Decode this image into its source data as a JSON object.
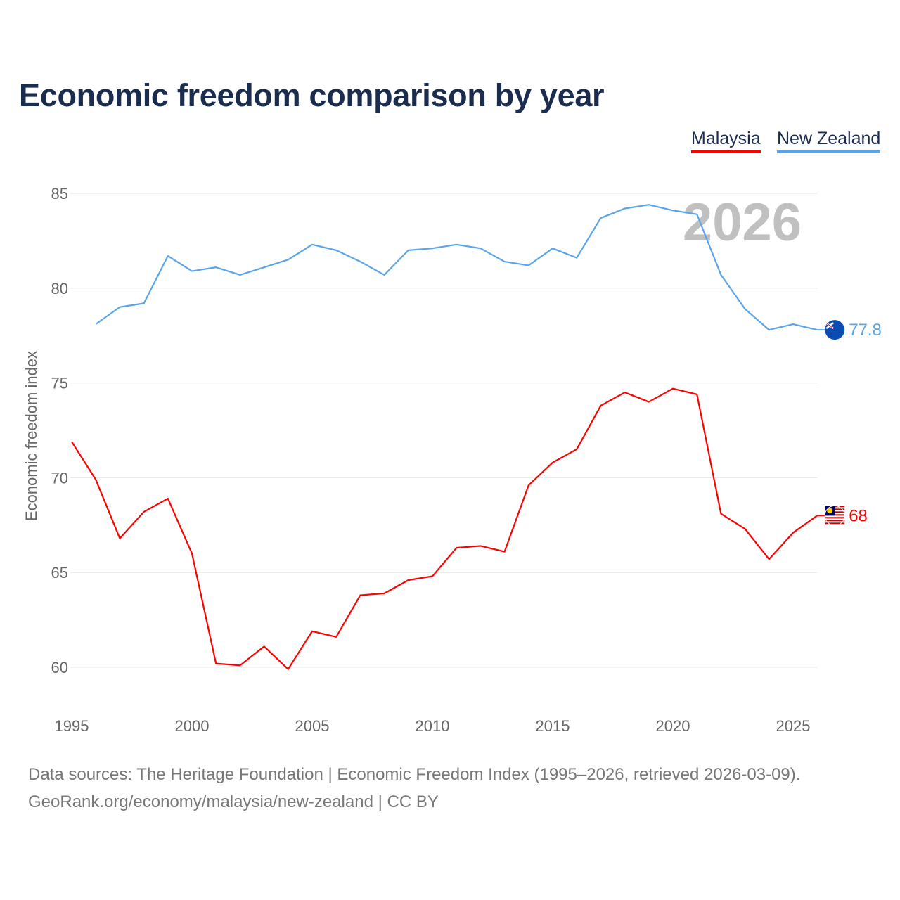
{
  "chart_data": {
    "type": "line",
    "title": "Economic freedom comparison by year",
    "xlabel": "",
    "ylabel": "Economic freedom index",
    "xlim": [
      1995,
      2026
    ],
    "ylim": [
      58,
      86
    ],
    "x_ticks": [
      "1995",
      "2000",
      "2005",
      "2010",
      "2015",
      "2020",
      "2025"
    ],
    "y_ticks": [
      "60",
      "65",
      "70",
      "75",
      "80",
      "85"
    ],
    "grid": true,
    "watermark_year": "2026",
    "legend": [
      "Malaysia",
      "New Zealand"
    ],
    "legend_position": "top-right",
    "series": [
      {
        "name": "Malaysia",
        "color": "#ff0000",
        "end_label": "68",
        "flag": "malaysia-flag",
        "x": [
          1995,
          1996,
          1997,
          1998,
          1999,
          2000,
          2001,
          2002,
          2003,
          2004,
          2005,
          2006,
          2007,
          2008,
          2009,
          2010,
          2011,
          2012,
          2013,
          2014,
          2015,
          2016,
          2017,
          2018,
          2019,
          2020,
          2021,
          2022,
          2023,
          2024,
          2025,
          2026
        ],
        "values": [
          71.9,
          69.9,
          66.8,
          68.2,
          68.9,
          66.0,
          60.2,
          60.1,
          61.1,
          59.9,
          61.9,
          61.6,
          63.8,
          63.9,
          64.6,
          64.8,
          66.3,
          66.4,
          66.1,
          69.6,
          70.8,
          71.5,
          73.8,
          74.5,
          74.0,
          74.7,
          74.4,
          68.1,
          67.3,
          65.7,
          67.1,
          68.0
        ]
      },
      {
        "name": "New Zealand",
        "color": "#5aa5ea",
        "end_label": "77.8",
        "flag": "new-zealand-flag",
        "x": [
          1996,
          1997,
          1998,
          1999,
          2000,
          2001,
          2002,
          2003,
          2004,
          2005,
          2006,
          2007,
          2008,
          2009,
          2010,
          2011,
          2012,
          2013,
          2014,
          2015,
          2016,
          2017,
          2018,
          2019,
          2020,
          2021,
          2022,
          2023,
          2024,
          2025,
          2026
        ],
        "values": [
          78.1,
          79.0,
          79.2,
          81.7,
          80.9,
          81.1,
          80.7,
          81.1,
          81.5,
          82.3,
          82.0,
          81.4,
          80.7,
          82.0,
          82.1,
          82.3,
          82.1,
          81.4,
          81.2,
          82.1,
          81.6,
          83.7,
          84.2,
          84.4,
          84.1,
          83.9,
          80.7,
          78.9,
          77.8,
          78.1,
          77.8
        ]
      }
    ]
  },
  "footer": {
    "source": "Data sources: The Heritage Foundation | Economic Freedom Index (1995–2026, retrieved 2026-03-09).",
    "link": "GeoRank.org/economy/malaysia/new-zealand | CC BY"
  }
}
